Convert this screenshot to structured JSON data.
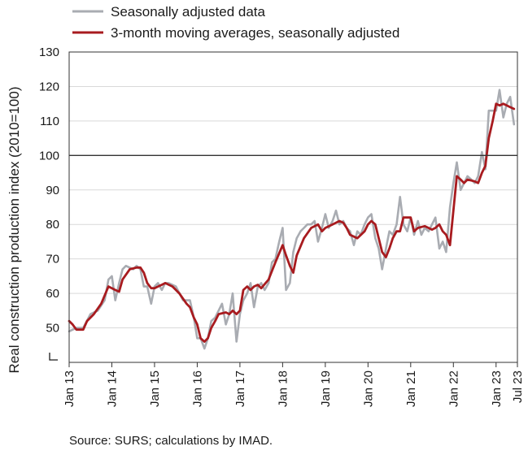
{
  "chart_data": {
    "type": "line",
    "ylabel": "Real construction production index (2010=100)",
    "ylim": [
      40,
      130
    ],
    "yticks": [
      50,
      60,
      70,
      80,
      90,
      100,
      110,
      120,
      130
    ],
    "ytick_labels": [
      "50",
      "60",
      "70",
      "80",
      "90",
      "100",
      "110",
      "120",
      "130"
    ],
    "reference_line": 100,
    "xticks": [
      {
        "x": 2013.0,
        "label": "Jan 13"
      },
      {
        "x": 2014.0,
        "label": "Jan 14"
      },
      {
        "x": 2015.0,
        "label": "Jan 15"
      },
      {
        "x": 2016.0,
        "label": "Jan 16"
      },
      {
        "x": 2017.0,
        "label": "Jan 17"
      },
      {
        "x": 2018.0,
        "label": "Jan 18"
      },
      {
        "x": 2019.0,
        "label": "Jan 19"
      },
      {
        "x": 2020.0,
        "label": "Jan 20"
      },
      {
        "x": 2021.0,
        "label": "Jan 21"
      },
      {
        "x": 2022.0,
        "label": "Jan 22"
      },
      {
        "x": 2023.0,
        "label": "Jan 23"
      },
      {
        "x": 2023.5,
        "label": "Jul 23"
      }
    ],
    "x_range": [
      2013.0,
      2023.5
    ],
    "legend_position": "top",
    "series": [
      {
        "name": "Seasonally adjusted data",
        "color": "#a9acb2",
        "width": 2.6,
        "points": [
          [
            2013.0,
            49
          ],
          [
            2013.17,
            50
          ],
          [
            2013.33,
            50
          ],
          [
            2013.5,
            54
          ],
          [
            2013.67,
            55
          ],
          [
            2013.83,
            58
          ],
          [
            2013.92,
            64
          ],
          [
            2014.0,
            65
          ],
          [
            2014.08,
            58
          ],
          [
            2014.17,
            63
          ],
          [
            2014.25,
            67
          ],
          [
            2014.33,
            68
          ],
          [
            2014.5,
            67
          ],
          [
            2014.58,
            68
          ],
          [
            2014.67,
            67
          ],
          [
            2014.75,
            62
          ],
          [
            2014.83,
            62
          ],
          [
            2014.92,
            57
          ],
          [
            2015.0,
            62
          ],
          [
            2015.08,
            63
          ],
          [
            2015.17,
            61
          ],
          [
            2015.25,
            63
          ],
          [
            2015.33,
            63
          ],
          [
            2015.5,
            62
          ],
          [
            2015.67,
            58
          ],
          [
            2015.83,
            58
          ],
          [
            2015.92,
            53
          ],
          [
            2016.0,
            47
          ],
          [
            2016.08,
            47
          ],
          [
            2016.17,
            44
          ],
          [
            2016.25,
            47
          ],
          [
            2016.33,
            52
          ],
          [
            2016.42,
            53
          ],
          [
            2016.5,
            55
          ],
          [
            2016.58,
            57
          ],
          [
            2016.67,
            51
          ],
          [
            2016.75,
            54
          ],
          [
            2016.83,
            60
          ],
          [
            2016.92,
            46
          ],
          [
            2017.0,
            54
          ],
          [
            2017.08,
            58
          ],
          [
            2017.17,
            60
          ],
          [
            2017.25,
            63
          ],
          [
            2017.33,
            56
          ],
          [
            2017.42,
            62
          ],
          [
            2017.5,
            63
          ],
          [
            2017.58,
            61
          ],
          [
            2017.67,
            63
          ],
          [
            2017.75,
            69
          ],
          [
            2017.83,
            70
          ],
          [
            2017.92,
            75
          ],
          [
            2018.0,
            79
          ],
          [
            2018.08,
            61
          ],
          [
            2018.17,
            63
          ],
          [
            2018.25,
            72
          ],
          [
            2018.33,
            76
          ],
          [
            2018.42,
            78
          ],
          [
            2018.5,
            79
          ],
          [
            2018.58,
            80
          ],
          [
            2018.67,
            80
          ],
          [
            2018.75,
            81
          ],
          [
            2018.83,
            75
          ],
          [
            2018.92,
            79
          ],
          [
            2019.0,
            83
          ],
          [
            2019.08,
            79
          ],
          [
            2019.17,
            81
          ],
          [
            2019.25,
            84
          ],
          [
            2019.33,
            80
          ],
          [
            2019.42,
            81
          ],
          [
            2019.5,
            79
          ],
          [
            2019.58,
            78
          ],
          [
            2019.67,
            74
          ],
          [
            2019.75,
            78
          ],
          [
            2019.83,
            77
          ],
          [
            2019.92,
            80
          ],
          [
            2020.0,
            82
          ],
          [
            2020.08,
            83
          ],
          [
            2020.17,
            76
          ],
          [
            2020.25,
            73
          ],
          [
            2020.33,
            67
          ],
          [
            2020.42,
            73
          ],
          [
            2020.5,
            78
          ],
          [
            2020.58,
            77
          ],
          [
            2020.67,
            80
          ],
          [
            2020.75,
            88
          ],
          [
            2020.83,
            80
          ],
          [
            2020.92,
            78
          ],
          [
            2021.0,
            82
          ],
          [
            2021.08,
            77
          ],
          [
            2021.17,
            81
          ],
          [
            2021.25,
            77
          ],
          [
            2021.33,
            79
          ],
          [
            2021.42,
            78
          ],
          [
            2021.5,
            80
          ],
          [
            2021.58,
            82
          ],
          [
            2021.67,
            73
          ],
          [
            2021.75,
            75
          ],
          [
            2021.83,
            72
          ],
          [
            2021.92,
            85
          ],
          [
            2022.0,
            92
          ],
          [
            2022.08,
            98
          ],
          [
            2022.17,
            90
          ],
          [
            2022.25,
            92
          ],
          [
            2022.33,
            94
          ],
          [
            2022.42,
            93
          ],
          [
            2022.5,
            92
          ],
          [
            2022.58,
            94
          ],
          [
            2022.67,
            101
          ],
          [
            2022.75,
            96
          ],
          [
            2022.83,
            113
          ],
          [
            2022.92,
            113
          ],
          [
            2023.0,
            113
          ],
          [
            2023.08,
            119
          ],
          [
            2023.17,
            111
          ],
          [
            2023.25,
            115
          ],
          [
            2023.33,
            117
          ],
          [
            2023.42,
            109
          ]
        ]
      },
      {
        "name": "3-month moving averages, seasonally adjusted",
        "color": "#a81b1f",
        "width": 2.8,
        "points": [
          [
            2013.0,
            52
          ],
          [
            2013.08,
            51
          ],
          [
            2013.17,
            49.5
          ],
          [
            2013.33,
            49.5
          ],
          [
            2013.42,
            52
          ],
          [
            2013.58,
            54
          ],
          [
            2013.75,
            57
          ],
          [
            2013.92,
            62
          ],
          [
            2014.08,
            61
          ],
          [
            2014.17,
            60.5
          ],
          [
            2014.25,
            64
          ],
          [
            2014.42,
            67
          ],
          [
            2014.58,
            67.5
          ],
          [
            2014.67,
            67.5
          ],
          [
            2014.75,
            66
          ],
          [
            2014.83,
            63
          ],
          [
            2014.92,
            61.5
          ],
          [
            2015.0,
            61.5
          ],
          [
            2015.08,
            62
          ],
          [
            2015.17,
            62.5
          ],
          [
            2015.25,
            63
          ],
          [
            2015.42,
            62
          ],
          [
            2015.58,
            60
          ],
          [
            2015.75,
            57
          ],
          [
            2015.83,
            56
          ],
          [
            2015.92,
            53
          ],
          [
            2016.0,
            51
          ],
          [
            2016.08,
            47
          ],
          [
            2016.17,
            46
          ],
          [
            2016.25,
            47
          ],
          [
            2016.33,
            50
          ],
          [
            2016.42,
            52
          ],
          [
            2016.5,
            54
          ],
          [
            2016.67,
            54.5
          ],
          [
            2016.75,
            54
          ],
          [
            2016.83,
            55
          ],
          [
            2016.92,
            54
          ],
          [
            2017.0,
            55
          ],
          [
            2017.08,
            61
          ],
          [
            2017.17,
            62
          ],
          [
            2017.25,
            61
          ],
          [
            2017.33,
            62
          ],
          [
            2017.42,
            62.5
          ],
          [
            2017.5,
            61.5
          ],
          [
            2017.67,
            64
          ],
          [
            2017.83,
            69
          ],
          [
            2018.0,
            74
          ],
          [
            2018.08,
            71
          ],
          [
            2018.17,
            68
          ],
          [
            2018.25,
            66
          ],
          [
            2018.33,
            71
          ],
          [
            2018.5,
            76
          ],
          [
            2018.67,
            79
          ],
          [
            2018.83,
            80
          ],
          [
            2018.92,
            78
          ],
          [
            2019.0,
            79
          ],
          [
            2019.17,
            80
          ],
          [
            2019.33,
            81
          ],
          [
            2019.42,
            80.5
          ],
          [
            2019.5,
            79
          ],
          [
            2019.58,
            77
          ],
          [
            2019.75,
            76
          ],
          [
            2019.92,
            78
          ],
          [
            2020.0,
            80
          ],
          [
            2020.08,
            81
          ],
          [
            2020.17,
            80
          ],
          [
            2020.25,
            76
          ],
          [
            2020.33,
            72
          ],
          [
            2020.42,
            70.5
          ],
          [
            2020.5,
            73
          ],
          [
            2020.58,
            76
          ],
          [
            2020.67,
            78
          ],
          [
            2020.75,
            78
          ],
          [
            2020.83,
            82
          ],
          [
            2020.92,
            82
          ],
          [
            2021.0,
            82
          ],
          [
            2021.08,
            78
          ],
          [
            2021.17,
            79
          ],
          [
            2021.33,
            79.5
          ],
          [
            2021.5,
            78.5
          ],
          [
            2021.58,
            79
          ],
          [
            2021.67,
            80
          ],
          [
            2021.75,
            78
          ],
          [
            2021.83,
            77
          ],
          [
            2021.92,
            74
          ],
          [
            2022.0,
            84
          ],
          [
            2022.08,
            94
          ],
          [
            2022.17,
            93
          ],
          [
            2022.25,
            92
          ],
          [
            2022.33,
            93
          ],
          [
            2022.5,
            92.5
          ],
          [
            2022.58,
            92
          ],
          [
            2022.67,
            95
          ],
          [
            2022.75,
            97
          ],
          [
            2022.83,
            105
          ],
          [
            2022.92,
            110
          ],
          [
            2023.0,
            115
          ],
          [
            2023.08,
            114.5
          ],
          [
            2023.17,
            115
          ],
          [
            2023.25,
            114.5
          ],
          [
            2023.33,
            114
          ],
          [
            2023.42,
            113.5
          ]
        ]
      }
    ],
    "source": "Source: SURS; calculations by IMAD."
  }
}
